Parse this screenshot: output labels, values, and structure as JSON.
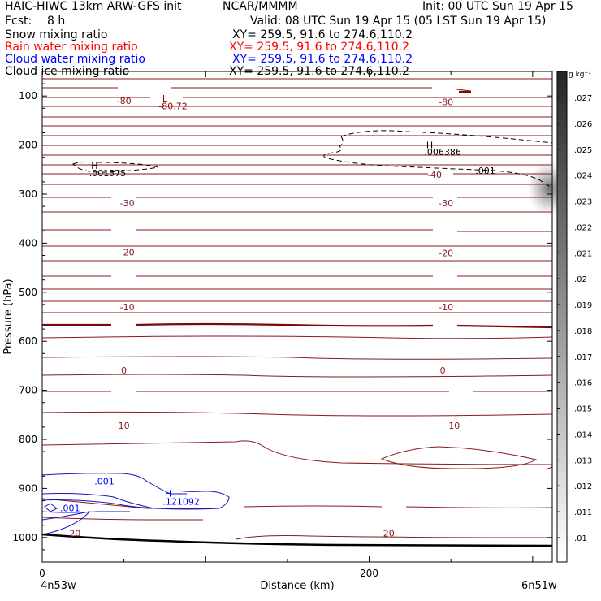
{
  "header": {
    "title_left": "HAIC-HIWC 13km ARW-GFS init",
    "org": "NCAR/MMMM",
    "init": "Init: 00 UTC Sun 19 Apr 15",
    "fcst_label": "Fcst:",
    "fcst_value": "8 h",
    "valid": "Valid: 08 UTC Sun 19 Apr 15 (05 LST Sun 19 Apr 15)",
    "fields": [
      {
        "name": "Snow mixing ratio",
        "xy": "XY= 259.5, 91.6 to 274.6,110.2",
        "color": "#000000"
      },
      {
        "name": "Rain water mixing ratio",
        "xy": "XY= 259.5, 91.6 to 274.6,110.2",
        "color": "#ff0000"
      },
      {
        "name": "Cloud water mixing ratio",
        "xy": "XY= 259.5, 91.6 to 274.6,110.2",
        "color": "#0000ff"
      },
      {
        "name": "Cloud ice mixing ratio",
        "xy": "XY= 259.5, 91.6 to 274.6,110.2",
        "color": "#000000"
      }
    ]
  },
  "chart_data": {
    "type": "cross-section",
    "ylabel": "Pressure (hPa)",
    "xlabel": "Distance (km)",
    "x_ticks": [
      "0",
      "200"
    ],
    "y_ticks": [
      "100",
      "200",
      "300",
      "400",
      "500",
      "600",
      "700",
      "800",
      "900",
      "1000"
    ],
    "ylim_hpa": [
      50,
      1050
    ],
    "xlim_km": [
      0,
      312
    ],
    "endpoints": {
      "left": "4n53w",
      "right": "6n51w"
    },
    "colorbar": {
      "unit": "g kg⁻¹",
      "ticks": [
        ".027",
        ".026",
        ".025",
        ".024",
        ".023",
        ".022",
        ".021",
        ".02",
        ".019",
        ".018",
        ".017",
        ".016",
        ".015",
        ".014",
        ".013",
        ".012",
        ".011",
        ".01"
      ]
    },
    "temperature_contours_c": [
      -80,
      -40,
      -30,
      -20,
      -10,
      0,
      10,
      20
    ],
    "temperature_labels": [
      {
        "text": "-80",
        "x_km": 50,
        "p": 110
      },
      {
        "text": "-80",
        "x_km": 247,
        "p": 112
      },
      {
        "text": "-40",
        "x_km": 240,
        "p": 260
      },
      {
        "text": "-30",
        "x_km": 52,
        "p": 318
      },
      {
        "text": "-30",
        "x_km": 247,
        "p": 318
      },
      {
        "text": "-20",
        "x_km": 52,
        "p": 418
      },
      {
        "text": "-20",
        "x_km": 247,
        "p": 420
      },
      {
        "text": "-10",
        "x_km": 52,
        "p": 530
      },
      {
        "text": "-10",
        "x_km": 247,
        "p": 530
      },
      {
        "text": "0",
        "x_km": 50,
        "p": 659
      },
      {
        "text": "0",
        "x_km": 245,
        "p": 659
      },
      {
        "text": "10",
        "x_km": 50,
        "p": 772
      },
      {
        "text": "10",
        "x_km": 252,
        "p": 772
      },
      {
        "text": "20",
        "x_km": 20,
        "p": 991
      },
      {
        "text": "20",
        "x_km": 212,
        "p": 991
      }
    ],
    "annotations": [
      {
        "text": "L",
        "x_km": 75,
        "p": 105,
        "color": "#8b0000"
      },
      {
        "text": "-80.72",
        "x_km": 80,
        "p": 120,
        "color": "#8b0000"
      },
      {
        "text": "H",
        "x_km": 32,
        "p": 242,
        "color": "#000000"
      },
      {
        "text": ".001575",
        "x_km": 40,
        "p": 257,
        "color": "#000000"
      },
      {
        "text": "H",
        "x_km": 237,
        "p": 200,
        "color": "#000000"
      },
      {
        "text": ".006386",
        "x_km": 245,
        "p": 214,
        "color": "#000000"
      },
      {
        "text": ".001",
        "x_km": 271,
        "p": 252,
        "color": "#000000"
      },
      {
        "text": ".001",
        "x_km": 38,
        "p": 885,
        "color": "#0000ff"
      },
      {
        "text": "H",
        "x_km": 77,
        "p": 910,
        "color": "#0000ff"
      },
      {
        "text": ".121092",
        "x_km": 85,
        "p": 927,
        "color": "#0000ff"
      },
      {
        "text": ".001",
        "x_km": 17,
        "p": 940,
        "color": "#0000ff"
      }
    ]
  }
}
